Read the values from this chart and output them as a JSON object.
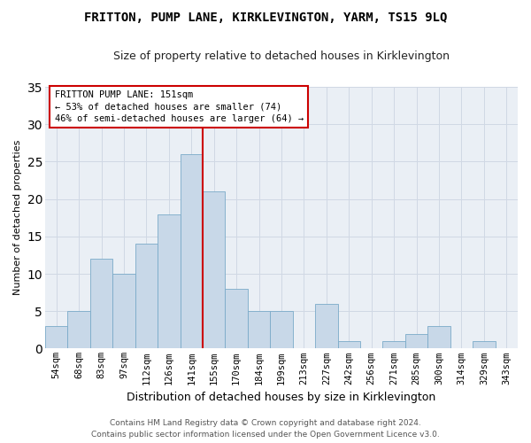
{
  "title": "FRITTON, PUMP LANE, KIRKLEVINGTON, YARM, TS15 9LQ",
  "subtitle": "Size of property relative to detached houses in Kirklevington",
  "xlabel": "Distribution of detached houses by size in Kirklevington",
  "ylabel": "Number of detached properties",
  "categories": [
    "54sqm",
    "68sqm",
    "83sqm",
    "97sqm",
    "112sqm",
    "126sqm",
    "141sqm",
    "155sqm",
    "170sqm",
    "184sqm",
    "199sqm",
    "213sqm",
    "227sqm",
    "242sqm",
    "256sqm",
    "271sqm",
    "285sqm",
    "300sqm",
    "314sqm",
    "329sqm",
    "343sqm"
  ],
  "values": [
    3,
    5,
    12,
    10,
    14,
    18,
    26,
    21,
    8,
    5,
    5,
    0,
    6,
    1,
    0,
    1,
    2,
    3,
    0,
    1,
    0
  ],
  "bar_color": "#c8d8e8",
  "bar_edge_color": "#7aaac8",
  "grid_color": "#d0d8e4",
  "background_color": "#eaeff5",
  "annotation_box_line1": "FRITTON PUMP LANE: 151sqm",
  "annotation_box_line2": "← 53% of detached houses are smaller (74)",
  "annotation_box_line3": "46% of semi-detached houses are larger (64) →",
  "annotation_box_color": "#ffffff",
  "annotation_box_edge_color": "#cc0000",
  "vline_color": "#cc0000",
  "vline_x_index": 6,
  "ylim": [
    0,
    35
  ],
  "yticks": [
    0,
    5,
    10,
    15,
    20,
    25,
    30,
    35
  ],
  "footer_line1": "Contains HM Land Registry data © Crown copyright and database right 2024.",
  "footer_line2": "Contains public sector information licensed under the Open Government Licence v3.0.",
  "title_fontsize": 10,
  "subtitle_fontsize": 9,
  "ylabel_fontsize": 8,
  "xlabel_fontsize": 9,
  "tick_fontsize": 7.5,
  "footer_fontsize": 6.5,
  "ann_fontsize": 7.5
}
